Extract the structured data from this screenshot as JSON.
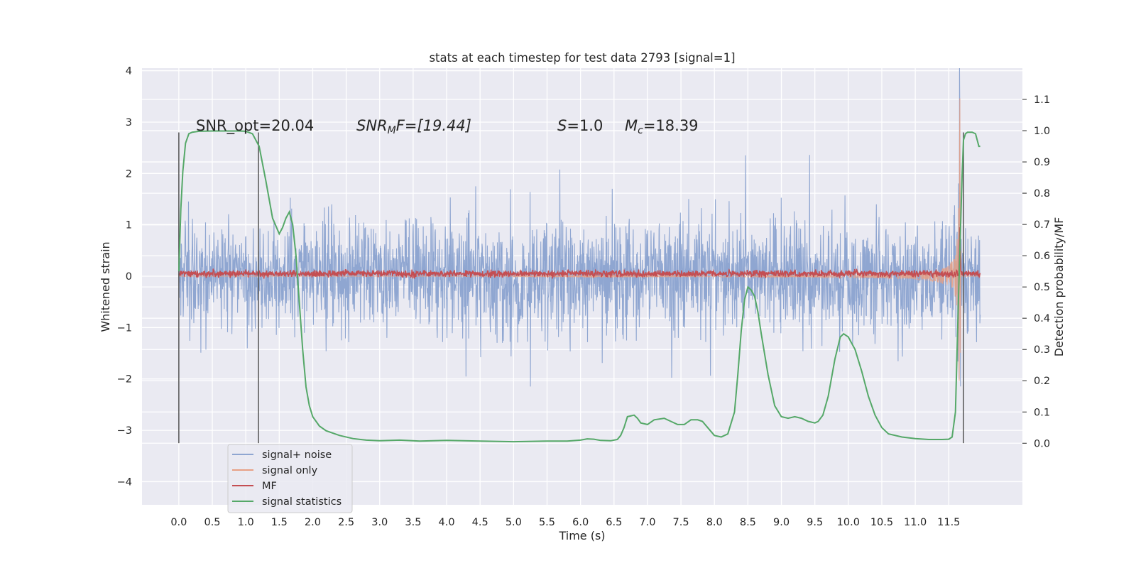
{
  "chart_data": {
    "type": "line",
    "title": "stats at each timestep for test data 2793 [signal=1]",
    "xlabel": "Time (s)",
    "ylabel": "Whitened strain",
    "ylabel_right": "Detection probability/MF",
    "xlim": [
      -0.55,
      12.6
    ],
    "ylim": [
      -4.45,
      4.05
    ],
    "ylim_right": [
      -0.197,
      1.2
    ],
    "x_ticks": [
      "0.0",
      "0.5",
      "1.0",
      "1.5",
      "2.0",
      "2.5",
      "3.0",
      "3.5",
      "4.0",
      "4.5",
      "5.0",
      "5.5",
      "6.0",
      "6.5",
      "7.0",
      "7.5",
      "8.0",
      "8.5",
      "9.0",
      "9.5",
      "10.0",
      "10.5",
      "11.0",
      "11.5"
    ],
    "y_ticks": [
      "4",
      "3",
      "2",
      "1",
      "0",
      "−1",
      "−2",
      "−3",
      "−4"
    ],
    "y_ticks_right": [
      "1.1",
      "1.0",
      "0.9",
      "0.8",
      "0.7",
      "0.6",
      "0.5",
      "0.4",
      "0.3",
      "0.2",
      "0.1",
      "0.0"
    ],
    "grid": true,
    "legend_position": "lower-left",
    "annotations": {
      "snr_opt": "SNR_opt=20.04",
      "snr_mf_base": "SNR",
      "snr_mf_sub": "M",
      "snr_mf_rest": "F=[19.44]",
      "s_sym": "S",
      "s_val": "=1.0",
      "mc_sym": "M",
      "mc_sub": "c",
      "mc_val": "=18.39"
    },
    "vlines": [
      0.0,
      1.19,
      11.72
    ],
    "series": [
      {
        "name": "signal+ noise",
        "color": "#8fa6d1",
        "description": "whitened noisy strain, roughly within ±1.6 with peaks to about ±3.6, t from 0 to 11.97 s"
      },
      {
        "name": "signal only",
        "color": "#e8a085",
        "description": "chirp signal growing from near 0 around t=8 s to about ±3.6 at merger near t=11.66 s"
      },
      {
        "name": "MF",
        "color": "#c44e52",
        "description": "matched-filter output around 0.05 with a spike near t=11.66 s"
      },
      {
        "name": "signal statistics",
        "color": "#55a868",
        "x": [
          0.0,
          0.03,
          0.06,
          0.1,
          0.15,
          0.2,
          0.3,
          0.5,
          0.7,
          0.9,
          1.0,
          1.1,
          1.2,
          1.3,
          1.4,
          1.5,
          1.55,
          1.6,
          1.65,
          1.7,
          1.75,
          1.8,
          1.85,
          1.9,
          1.95,
          2.0,
          2.1,
          2.2,
          2.4,
          2.6,
          2.8,
          3.0,
          3.3,
          3.6,
          4.0,
          4.5,
          5.0,
          5.5,
          5.8,
          6.0,
          6.1,
          6.2,
          6.3,
          6.45,
          6.55,
          6.6,
          6.65,
          6.7,
          6.8,
          6.85,
          6.9,
          7.0,
          7.1,
          7.25,
          7.35,
          7.45,
          7.55,
          7.65,
          7.75,
          7.82,
          7.9,
          8.0,
          8.1,
          8.2,
          8.3,
          8.35,
          8.4,
          8.45,
          8.5,
          8.55,
          8.6,
          8.65,
          8.7,
          8.8,
          8.9,
          9.0,
          9.1,
          9.2,
          9.3,
          9.4,
          9.5,
          9.55,
          9.62,
          9.7,
          9.8,
          9.88,
          9.93,
          10.0,
          10.1,
          10.2,
          10.3,
          10.4,
          10.5,
          10.6,
          10.8,
          11.0,
          11.2,
          11.4,
          11.5,
          11.55,
          11.6,
          11.65,
          11.7,
          11.72,
          11.75,
          11.78,
          11.82,
          11.85,
          11.9,
          11.95,
          11.97
        ],
        "y": [
          0.55,
          0.75,
          0.87,
          0.96,
          0.99,
          0.995,
          0.998,
          0.999,
          0.999,
          0.999,
          0.998,
          0.99,
          0.95,
          0.84,
          0.72,
          0.67,
          0.69,
          0.72,
          0.74,
          0.7,
          0.6,
          0.45,
          0.3,
          0.18,
          0.12,
          0.085,
          0.055,
          0.04,
          0.025,
          0.015,
          0.01,
          0.008,
          0.01,
          0.007,
          0.009,
          0.007,
          0.005,
          0.007,
          0.007,
          0.01,
          0.014,
          0.013,
          0.009,
          0.008,
          0.012,
          0.025,
          0.05,
          0.085,
          0.09,
          0.08,
          0.065,
          0.06,
          0.075,
          0.08,
          0.07,
          0.06,
          0.06,
          0.075,
          0.075,
          0.07,
          0.05,
          0.025,
          0.02,
          0.03,
          0.1,
          0.22,
          0.36,
          0.46,
          0.5,
          0.49,
          0.47,
          0.42,
          0.35,
          0.22,
          0.12,
          0.085,
          0.08,
          0.085,
          0.08,
          0.07,
          0.065,
          0.07,
          0.09,
          0.15,
          0.27,
          0.34,
          0.35,
          0.34,
          0.3,
          0.23,
          0.15,
          0.09,
          0.05,
          0.03,
          0.02,
          0.015,
          0.012,
          0.012,
          0.013,
          0.02,
          0.1,
          0.5,
          0.86,
          0.97,
          0.99,
          0.995,
          0.995,
          0.995,
          0.99,
          0.95,
          0.95
        ]
      }
    ],
    "seed": 2793
  }
}
